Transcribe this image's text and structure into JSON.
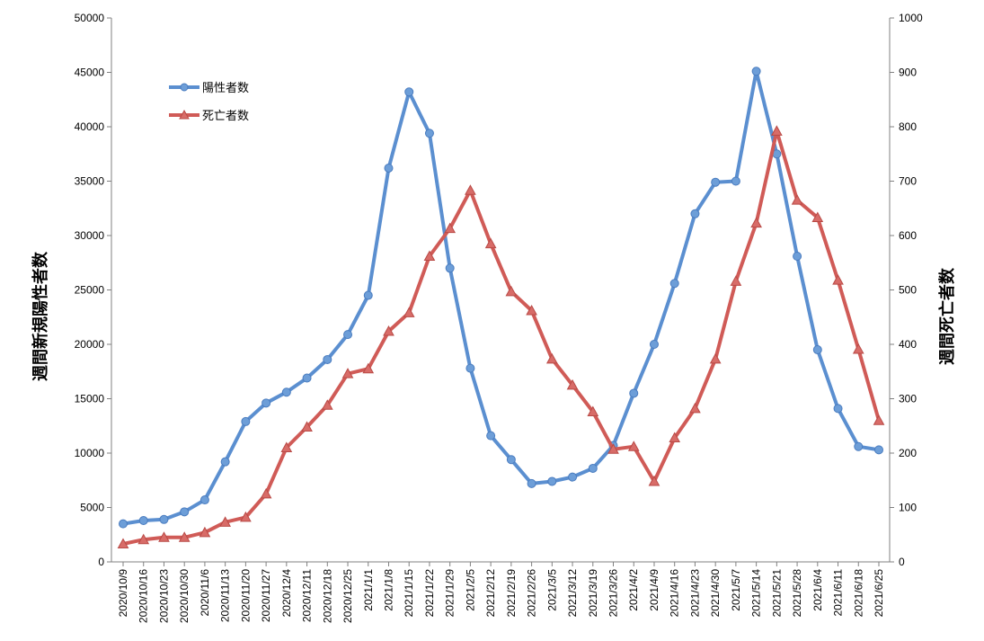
{
  "chart_data": {
    "type": "line",
    "y_left_label": "週間新規陽性者数",
    "y_right_label": "週間死亡者数",
    "y_left_lim": [
      0,
      50000
    ],
    "y_left_ticks": [
      0,
      5000,
      10000,
      15000,
      20000,
      25000,
      30000,
      35000,
      40000,
      45000,
      50000
    ],
    "y_right_lim": [
      0,
      1000
    ],
    "y_right_ticks": [
      0,
      100,
      200,
      300,
      400,
      500,
      600,
      700,
      800,
      900,
      1000
    ],
    "grid": false,
    "legend_position": "top-left",
    "categories": [
      "2020/10/9",
      "2020/10/16",
      "2020/10/23",
      "2020/10/30",
      "2020/11/6",
      "2020/11/13",
      "2020/11/20",
      "2020/11/27",
      "2020/12/4",
      "2020/12/11",
      "2020/12/18",
      "2020/12/25",
      "2021/1/1",
      "2021/1/8",
      "2021/1/15",
      "2021/1/22",
      "2021/1/29",
      "2021/2/5",
      "2021/2/12",
      "2021/2/19",
      "2021/2/26",
      "2021/3/5",
      "2021/3/12",
      "2021/3/19",
      "2021/3/26",
      "2021/4/2",
      "2021/4/9",
      "2021/4/16",
      "2021/4/23",
      "2021/4/30",
      "2021/5/7",
      "2021/5/14",
      "2021/5/21",
      "2021/5/28",
      "2021/6/4",
      "2021/6/11",
      "2021/6/18",
      "2021/6/25"
    ],
    "series": [
      {
        "name": "陽性者数",
        "axis": "left",
        "color": "#5b8fd0",
        "marker": "circle",
        "values": [
          3500,
          3800,
          3900,
          4600,
          5700,
          9200,
          12900,
          14600,
          15600,
          16900,
          18600,
          20900,
          24500,
          36200,
          43200,
          39400,
          27000,
          17800,
          11600,
          9400,
          7200,
          7400,
          7800,
          8600,
          10700,
          15500,
          20000,
          25600,
          32000,
          34900,
          35000,
          45100,
          37500,
          28100,
          19500,
          14100,
          10600,
          10300
        ]
      },
      {
        "name": "死亡者数",
        "axis": "right",
        "color": "#d05b57",
        "marker": "triangle",
        "values": [
          33,
          41,
          45,
          45,
          54,
          73,
          82,
          125,
          210,
          248,
          288,
          346,
          355,
          424,
          458,
          562,
          613,
          683,
          585,
          497,
          462,
          373,
          325,
          276,
          207,
          212,
          148,
          228,
          282,
          373,
          516,
          623,
          792,
          665,
          633,
          518,
          391,
          260
        ]
      }
    ]
  }
}
